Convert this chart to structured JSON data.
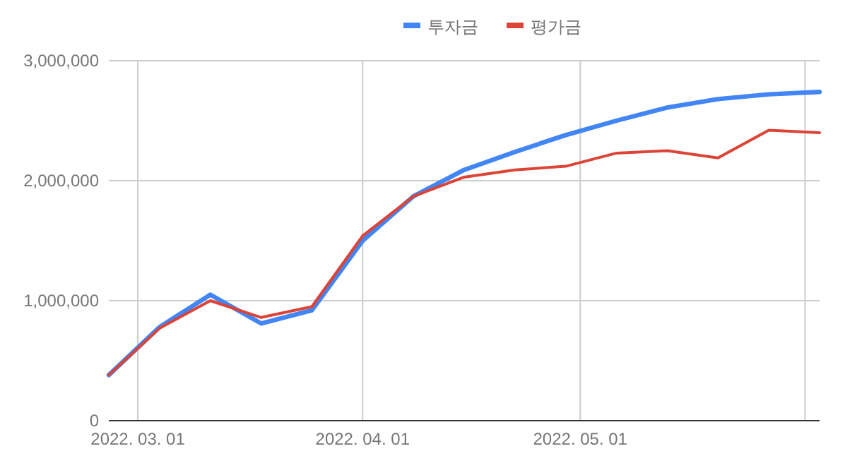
{
  "chart_data": {
    "type": "line",
    "x": [
      "2022-02-25",
      "2022-03-04",
      "2022-03-11",
      "2022-03-18",
      "2022-03-25",
      "2022-04-01",
      "2022-04-08",
      "2022-04-15",
      "2022-04-22",
      "2022-04-29",
      "2022-05-06",
      "2022-05-13",
      "2022-05-20",
      "2022-05-27",
      "2022-06-03"
    ],
    "series": [
      {
        "name": "투자금",
        "color": "#4285f4",
        "values": [
          380000,
          780000,
          1050000,
          810000,
          920000,
          1500000,
          1870000,
          2090000,
          2240000,
          2380000,
          2500000,
          2610000,
          2680000,
          2720000,
          2740000
        ]
      },
      {
        "name": "평가금",
        "color": "#db4437",
        "values": [
          380000,
          770000,
          1000000,
          860000,
          950000,
          1540000,
          1870000,
          2030000,
          2090000,
          2120000,
          2230000,
          2250000,
          2190000,
          2420000,
          2400000
        ]
      }
    ],
    "xlim": [
      "2022-02-25",
      "2022-06-03"
    ],
    "xticks": [
      {
        "value": "2022-03-01",
        "label": "2022. 03. 01"
      },
      {
        "value": "2022-04-01",
        "label": "2022. 04. 01"
      },
      {
        "value": "2022-05-01",
        "label": "2022. 05. 01"
      },
      {
        "value": "2022-06-01",
        "label": null
      }
    ],
    "ylim": [
      0,
      3000000
    ],
    "yticks": [
      {
        "value": 0,
        "label": "0"
      },
      {
        "value": 1000000,
        "label": "1,000,000"
      },
      {
        "value": 2000000,
        "label": "2,000,000"
      },
      {
        "value": 3000000,
        "label": "3,000,000"
      }
    ],
    "grid": true,
    "legend": "top",
    "marker": "none",
    "line_style": "solid"
  }
}
